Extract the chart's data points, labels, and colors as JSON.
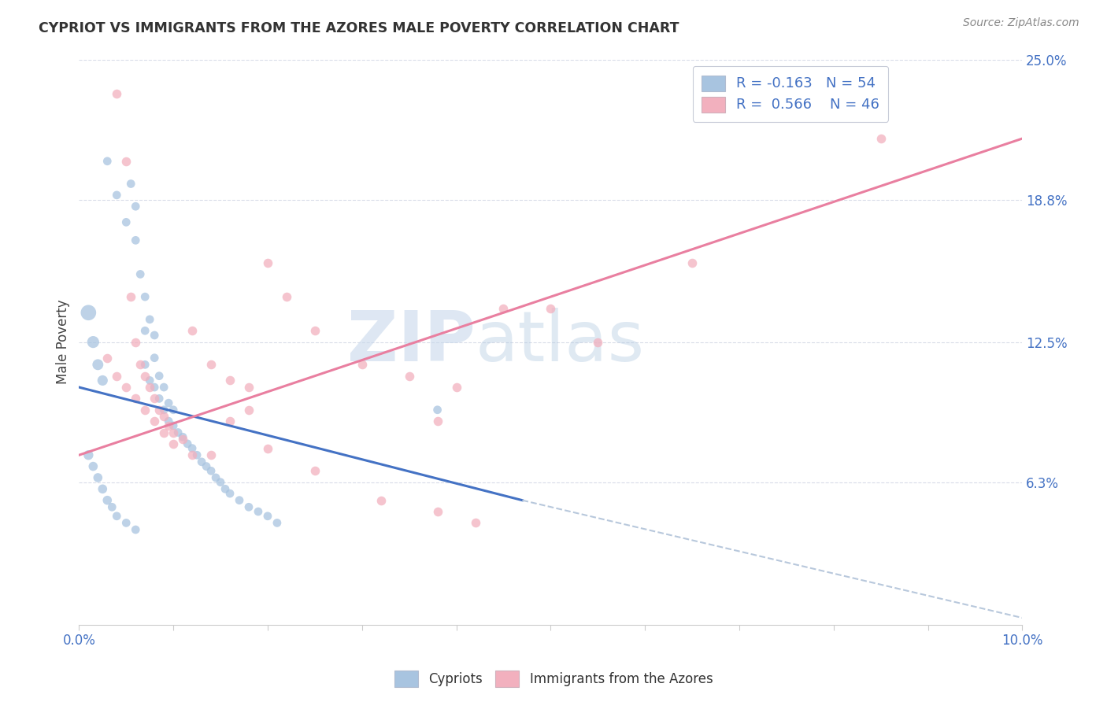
{
  "title": "CYPRIOT VS IMMIGRANTS FROM THE AZORES MALE POVERTY CORRELATION CHART",
  "source": "Source: ZipAtlas.com",
  "ylabel": "Male Poverty",
  "ytick_labels": [
    "6.3%",
    "12.5%",
    "18.8%",
    "25.0%"
  ],
  "ytick_values": [
    6.3,
    12.5,
    18.8,
    25.0
  ],
  "xlim": [
    0.0,
    10.0
  ],
  "ylim": [
    0.0,
    25.0
  ],
  "legend_R_blue": "-0.163",
  "legend_N_blue": "54",
  "legend_R_pink": "0.566",
  "legend_N_pink": "46",
  "color_blue": "#a8c4e0",
  "color_pink": "#f2b0be",
  "color_blue_line": "#4472c4",
  "color_pink_line": "#e97fa0",
  "color_blue_text": "#4472c4",
  "color_dashed": "#b8c8dc",
  "background": "#ffffff",
  "watermark_zip": "ZIP",
  "watermark_atlas": "atlas",
  "blue_scatter_x": [
    0.3,
    0.4,
    0.5,
    0.55,
    0.6,
    0.6,
    0.65,
    0.7,
    0.7,
    0.7,
    0.75,
    0.75,
    0.8,
    0.8,
    0.8,
    0.85,
    0.85,
    0.9,
    0.9,
    0.95,
    0.95,
    1.0,
    1.0,
    1.05,
    1.1,
    1.15,
    1.2,
    1.25,
    1.3,
    1.35,
    1.4,
    1.45,
    1.5,
    1.55,
    1.6,
    1.7,
    1.8,
    1.9,
    2.0,
    2.1,
    0.1,
    0.15,
    0.2,
    0.25,
    0.1,
    0.15,
    0.2,
    0.25,
    0.3,
    0.35,
    0.4,
    0.5,
    0.6,
    3.8
  ],
  "blue_scatter_y": [
    20.5,
    19.0,
    17.8,
    19.5,
    18.5,
    17.0,
    15.5,
    14.5,
    13.0,
    11.5,
    10.8,
    13.5,
    12.8,
    11.8,
    10.5,
    11.0,
    10.0,
    10.5,
    9.5,
    9.8,
    9.0,
    9.5,
    8.8,
    8.5,
    8.3,
    8.0,
    7.8,
    7.5,
    7.2,
    7.0,
    6.8,
    6.5,
    6.3,
    6.0,
    5.8,
    5.5,
    5.2,
    5.0,
    4.8,
    4.5,
    13.8,
    12.5,
    11.5,
    10.8,
    7.5,
    7.0,
    6.5,
    6.0,
    5.5,
    5.2,
    4.8,
    4.5,
    4.2,
    9.5
  ],
  "blue_scatter_sizes": [
    60,
    60,
    60,
    60,
    60,
    60,
    60,
    60,
    60,
    60,
    60,
    60,
    60,
    60,
    60,
    60,
    60,
    60,
    60,
    60,
    60,
    60,
    60,
    60,
    60,
    60,
    60,
    60,
    60,
    60,
    60,
    60,
    60,
    60,
    60,
    60,
    60,
    60,
    60,
    60,
    200,
    120,
    100,
    90,
    80,
    70,
    70,
    70,
    70,
    60,
    60,
    60,
    60,
    60
  ],
  "pink_scatter_x": [
    0.4,
    0.5,
    0.55,
    0.6,
    0.65,
    0.7,
    0.75,
    0.8,
    0.85,
    0.9,
    0.95,
    1.0,
    1.1,
    1.2,
    1.4,
    1.6,
    1.8,
    2.0,
    2.2,
    2.5,
    3.0,
    3.5,
    3.8,
    4.0,
    4.5,
    5.0,
    5.5,
    6.5,
    8.5,
    0.3,
    0.4,
    0.5,
    0.6,
    0.7,
    0.8,
    0.9,
    1.0,
    1.2,
    1.4,
    1.6,
    1.8,
    2.0,
    2.5,
    3.2,
    3.8,
    4.2
  ],
  "pink_scatter_y": [
    23.5,
    20.5,
    14.5,
    12.5,
    11.5,
    11.0,
    10.5,
    10.0,
    9.5,
    9.2,
    8.8,
    8.5,
    8.2,
    13.0,
    11.5,
    10.8,
    10.5,
    16.0,
    14.5,
    13.0,
    11.5,
    11.0,
    9.0,
    10.5,
    14.0,
    14.0,
    12.5,
    16.0,
    21.5,
    11.8,
    11.0,
    10.5,
    10.0,
    9.5,
    9.0,
    8.5,
    8.0,
    7.5,
    7.5,
    9.0,
    9.5,
    7.8,
    6.8,
    5.5,
    5.0,
    4.5
  ],
  "blue_line_x": [
    0.0,
    4.7
  ],
  "blue_line_y": [
    10.5,
    5.5
  ],
  "pink_line_x": [
    0.0,
    10.0
  ],
  "pink_line_y": [
    7.5,
    21.5
  ],
  "dashed_line_x": [
    4.7,
    10.0
  ],
  "dashed_line_y": [
    5.5,
    0.3
  ]
}
